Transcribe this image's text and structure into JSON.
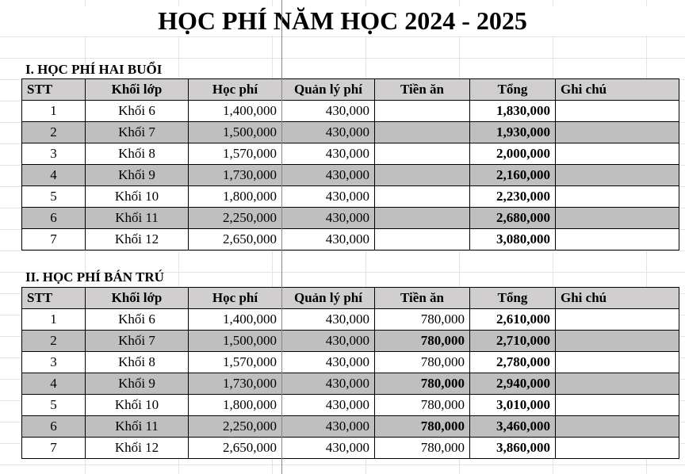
{
  "title": "HỌC PHÍ NĂM HỌC 2024 - 2025",
  "columns": [
    "STT",
    "Khối lớp",
    "Học phí",
    "Quản lý phí",
    "Tiền ăn",
    "Tổng",
    "Ghi chú"
  ],
  "section1": {
    "heading": "I.  HỌC PHÍ HAI BUỔI",
    "rows": [
      [
        "1",
        "Khối 6",
        "1,400,000",
        "430,000",
        "",
        "1,830,000",
        ""
      ],
      [
        "2",
        "Khối 7",
        "1,500,000",
        "430,000",
        "",
        "1,930,000",
        ""
      ],
      [
        "3",
        "Khối 8",
        "1,570,000",
        "430,000",
        "",
        "2,000,000",
        ""
      ],
      [
        "4",
        "Khối 9",
        "1,730,000",
        "430,000",
        "",
        "2,160,000",
        ""
      ],
      [
        "5",
        "Khối 10",
        "1,800,000",
        "430,000",
        "",
        "2,230,000",
        ""
      ],
      [
        "6",
        "Khối 11",
        "2,250,000",
        "430,000",
        "",
        "2,680,000",
        ""
      ],
      [
        "7",
        "Khối 12",
        "2,650,000",
        "430,000",
        "",
        "3,080,000",
        ""
      ]
    ]
  },
  "section2": {
    "heading": "II. HỌC PHÍ BÁN TRÚ",
    "rows": [
      [
        "1",
        "Khối 6",
        "1,400,000",
        "430,000",
        "780,000",
        "2,610,000",
        ""
      ],
      [
        "2",
        "Khối 7",
        "1,500,000",
        "430,000",
        "780,000",
        "2,710,000",
        ""
      ],
      [
        "3",
        "Khối 8",
        "1,570,000",
        "430,000",
        "780,000",
        "2,780,000",
        ""
      ],
      [
        "4",
        "Khối 9",
        "1,730,000",
        "430,000",
        "780,000",
        "2,940,000",
        ""
      ],
      [
        "5",
        "Khối 10",
        "1,800,000",
        "430,000",
        "780,000",
        "3,010,000",
        ""
      ],
      [
        "6",
        "Khối 11",
        "2,250,000",
        "430,000",
        "780,000",
        "3,460,000",
        ""
      ],
      [
        "7",
        "Khối 12",
        "2,650,000",
        "430,000",
        "780,000",
        "3,860,000",
        ""
      ]
    ]
  },
  "colors": {
    "header": "#d0cece",
    "stripe": "#bfbfbf",
    "selection_line": "#3cb371"
  }
}
